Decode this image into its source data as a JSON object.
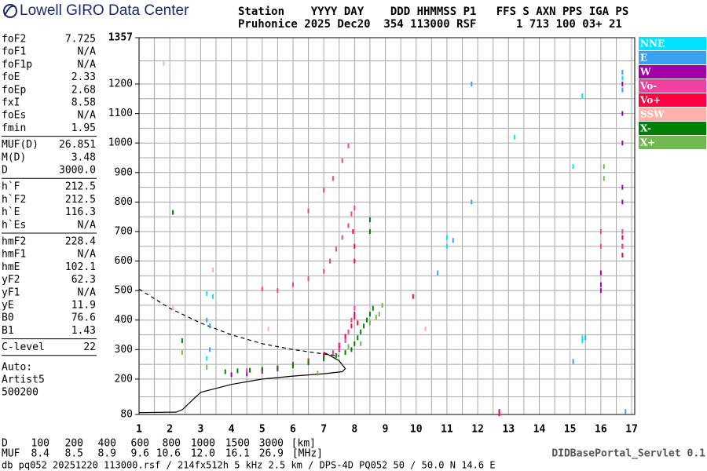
{
  "header": {
    "logo": "Lowell GIRO Data Center",
    "line1": "Station    YYYY DAY    DDD HHMMSS P1   FFS S AXN PPS IGA PS",
    "line2": "Pruhonice 2025 Dec20  354 113000 RSF      1 713 100 03+ 21"
  },
  "parameters": [
    [
      [
        "foF2",
        "7.725"
      ],
      [
        "foF1",
        "N/A"
      ],
      [
        "foF1p",
        "N/A"
      ],
      [
        "foE",
        "2.33"
      ],
      [
        "foEp",
        "2.68"
      ],
      [
        "fxI",
        "8.58"
      ],
      [
        "foEs",
        "N/A"
      ],
      [
        "fmin",
        "1.95"
      ]
    ],
    [
      [
        "MUF(D)",
        "26.851"
      ],
      [
        "M(D)",
        "3.48"
      ],
      [
        "D",
        "3000.0"
      ]
    ],
    [
      [
        "h`F",
        "212.5"
      ],
      [
        "h`F2",
        "212.5"
      ],
      [
        "h`E",
        "116.3"
      ],
      [
        "h`Es",
        "N/A"
      ]
    ],
    [
      [
        "hmF2",
        "228.4"
      ],
      [
        "hmF1",
        "N/A"
      ],
      [
        "hmE",
        "102.1"
      ],
      [
        "yF2",
        "62.3"
      ],
      [
        "yF1",
        "N/A"
      ],
      [
        "yE",
        "11.9"
      ],
      [
        "B0",
        "76.6"
      ],
      [
        "B1",
        "1.43"
      ]
    ],
    [
      [
        "C-level",
        "22"
      ]
    ]
  ],
  "autoscaling": [
    "Auto:",
    "Artist5",
    "500200"
  ],
  "chart_data": {
    "type": "scatter",
    "xlim": [
      1,
      17.1
    ],
    "ylim": [
      80,
      1357
    ],
    "xticks": [
      1,
      2,
      3,
      4,
      5,
      6,
      7,
      8,
      9,
      10,
      11,
      12,
      13,
      14,
      15,
      16,
      17
    ],
    "yticks": [
      80,
      200,
      300,
      400,
      500,
      600,
      700,
      800,
      900,
      1000,
      1100,
      1200,
      1357
    ],
    "grid": true,
    "minor_grid": true,
    "series": [
      {
        "name": "NNE",
        "color": "#00e4ff",
        "x": [
          3.2,
          3.4,
          11,
          11,
          15.4,
          15.4,
          15.4,
          16.7,
          13.2,
          15.1,
          3.2
        ],
        "values": [
          490,
          480,
          680,
          650,
          340,
          330,
          1160,
          1220,
          1020,
          920,
          270
        ]
      },
      {
        "name": "E",
        "color": "#3aa0f0",
        "x": [
          3.2,
          3.3,
          11.2,
          11.8,
          15.5,
          16.7,
          16.7,
          16.8,
          10.7,
          3.3,
          15.1,
          11.8
        ],
        "values": [
          400,
          380,
          670,
          1200,
          340,
          1240,
          1180,
          90,
          560,
          300,
          260,
          800
        ]
      },
      {
        "name": "W",
        "color": "#a000a8",
        "x": [
          4,
          4.5,
          5,
          5.5,
          6,
          6.5,
          7,
          7.5,
          8,
          16.7,
          16.7,
          16.7,
          16.7,
          16.7,
          16.7,
          16,
          16,
          16,
          12.7
        ],
        "values": [
          215,
          218,
          226,
          234,
          245,
          260,
          280,
          300,
          420,
          1200,
          1100,
          1000,
          850,
          800,
          650,
          560,
          520,
          500,
          90
        ]
      },
      {
        "name": "Vo-",
        "color": "#f040a0",
        "x": [
          4.5,
          5,
          5.5,
          6,
          6.5,
          7,
          7.3,
          7.5,
          7.7,
          7.8,
          7.9,
          8,
          5,
          5.5,
          6,
          6.5,
          7,
          7.2,
          7.4,
          7.6,
          7.8,
          7.9,
          8,
          6.5,
          7,
          7.3,
          7.6,
          7.8,
          16,
          16,
          16.7,
          16.7
        ],
        "values": [
          228,
          232,
          238,
          245,
          258,
          275,
          290,
          305,
          330,
          360,
          400,
          440,
          505,
          500,
          520,
          540,
          565,
          600,
          640,
          680,
          720,
          760,
          780,
          770,
          840,
          880,
          940,
          990,
          700,
          650,
          700,
          650
        ]
      },
      {
        "name": "Vo+",
        "color": "#ff0040",
        "x": [
          6,
          6.5,
          7,
          7.5,
          7.7,
          7.9,
          8,
          8.1,
          7.95,
          8,
          8,
          16.7,
          16.7,
          12.7,
          9.9
        ],
        "values": [
          250,
          262,
          282,
          315,
          345,
          380,
          410,
          390,
          700,
          650,
          600,
          680,
          620,
          82,
          480
        ]
      },
      {
        "name": "SSW",
        "color": "#ffb0a8",
        "x": [
          3.4,
          10.3,
          1.8,
          5.2,
          2.1
        ],
        "values": [
          570,
          370,
          1270,
          370,
          440
        ]
      },
      {
        "name": "X-",
        "color": "#008000",
        "x": [
          3.8,
          4.2,
          4.6,
          5,
          5.5,
          6,
          6.5,
          7,
          7.4,
          7.7,
          7.9,
          8,
          8.1,
          8.2,
          8.3,
          8.4,
          8.5,
          8.6,
          8.5,
          8.5,
          2.1,
          2.4
        ],
        "values": [
          225,
          228,
          230,
          233,
          238,
          245,
          255,
          268,
          280,
          290,
          300,
          320,
          340,
          360,
          380,
          400,
          420,
          440,
          740,
          700,
          765,
          330
        ]
      },
      {
        "name": "X+",
        "color": "#70b850",
        "x": [
          7.8,
          8.2,
          8.5,
          8.7,
          8.9,
          8.8,
          16.1,
          16.1,
          2.4,
          3.2,
          6.8
        ],
        "values": [
          310,
          320,
          390,
          410,
          450,
          420,
          920,
          880,
          290,
          240,
          220
        ]
      }
    ],
    "lines": [
      {
        "style": "solid",
        "x": [
          1,
          2.2,
          2.4,
          3,
          4,
          5,
          6,
          7,
          7.6,
          7.7,
          7.5,
          7.2,
          7
        ],
        "values": [
          86,
          88,
          96,
          155,
          182,
          200,
          210,
          218,
          225,
          235,
          262,
          280,
          290
        ]
      },
      {
        "style": "dashed",
        "x": [
          1,
          2,
          3,
          4,
          5,
          6,
          7,
          7.5
        ],
        "values": [
          505,
          440,
          390,
          350,
          320,
          300,
          285,
          278
        ]
      }
    ]
  },
  "distance_table": {
    "d_label": "D",
    "d": [
      "100",
      "200",
      "400",
      "600",
      "800",
      "1000",
      "1500",
      "3000",
      "[km]"
    ],
    "muf_label": "MUF",
    "muf": [
      "8.4",
      "8.5",
      "8.9",
      "9.6",
      "10.6",
      "12.0",
      "16.1",
      "26.9",
      "[MHz]"
    ]
  },
  "servlet": "DIDBasePortal_Servlet 0.1",
  "footer": "db pq052 20251220 113000.rsf / 214fx512h 5 kHz 2.5 km / DPS-4D PQ052 50 / 50.0 N 14.6 E"
}
